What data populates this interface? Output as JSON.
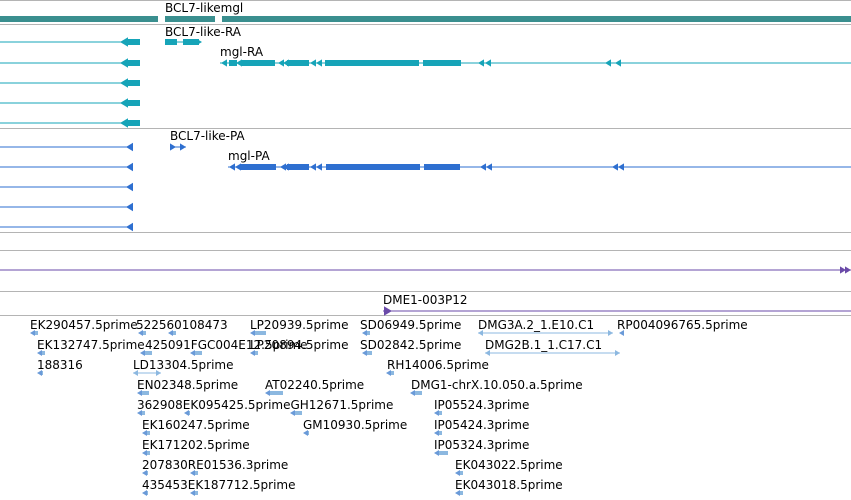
{
  "colors": {
    "gene": "#3a8f8f",
    "transcript": "#16a4b8",
    "protein": "#2e6fd0",
    "other": "#6a4aa8",
    "est": "#8cb8e0",
    "est_dark": "#6a9ad8",
    "divider": "#b4b4b4"
  },
  "gene_track": {
    "label": "BCL7-likemgl"
  },
  "transcript_track": {
    "labels": [
      {
        "text": "BCL7-like-RA"
      },
      {
        "text": "mgl-RA"
      }
    ]
  },
  "protein_track": {
    "labels": [
      {
        "text": "BCL7-like-PA"
      },
      {
        "text": "mgl-PA"
      }
    ]
  },
  "clone_track": {
    "label": "DME1-003P12"
  },
  "est_track": {
    "labels": [
      "EK290457.5prime",
      "522560108473",
      "LP20939.5prime",
      "SD06949.5prime",
      "DMG3A.2_1.E10.C1",
      "RP004096765.5prime",
      "EK132747.5prime",
      "425091FGC004E12.5prime",
      "LP20894.5prime",
      "SD02842.5prime",
      "DMG2B.1_1.C17.C1",
      "188316",
      "LD13304.5prime",
      "RH14006.5prime",
      "EN02348.5prime",
      "AT02240.5prime",
      "DMG1-chrX.10.050.a.5prime",
      "362908EK095425.5primeGH12671.5prime",
      "IP05524.3prime",
      "EK160247.5prime",
      "GM10930.5prime",
      "IP05424.3prime",
      "EK171202.5prime",
      "IP05324.3prime",
      "207830RE01536.3prime",
      "EK043022.5prime",
      "435453EK187712.5prime",
      "EK043018.5prime"
    ]
  }
}
